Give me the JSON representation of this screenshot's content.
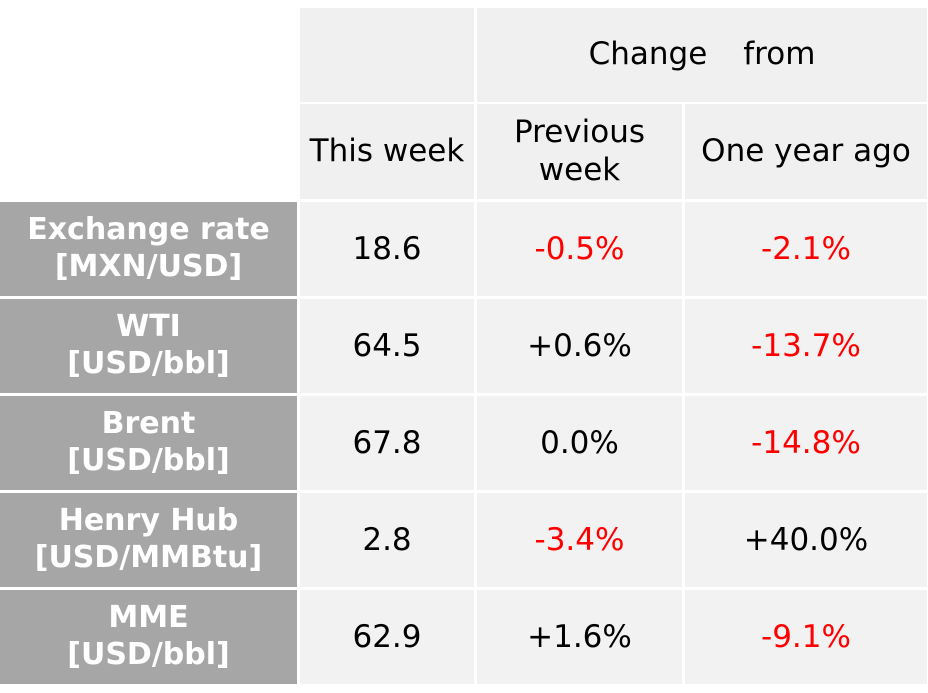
{
  "chart_data": {
    "type": "table",
    "header_group": {
      "word1": "Change",
      "word2": "from"
    },
    "columns": [
      "This week",
      "Previous\nweek",
      "One year ago"
    ],
    "rows": [
      {
        "label": "Exchange rate\n[MXN/USD]",
        "this_week": "18.6",
        "prev_week": "-0.5%",
        "year_ago": "-2.1%"
      },
      {
        "label": "WTI\n[USD/bbl]",
        "this_week": "64.5",
        "prev_week": "+0.6%",
        "year_ago": "-13.7%"
      },
      {
        "label": "Brent\n[USD/bbl]",
        "this_week": "67.8",
        "prev_week": "0.0%",
        "year_ago": "-14.8%"
      },
      {
        "label": "Henry Hub\n[USD/MMBtu]",
        "this_week": "2.8",
        "prev_week": "-3.4%",
        "year_ago": "+40.0%"
      },
      {
        "label": "MME\n[USD/bbl]",
        "this_week": "62.9",
        "prev_week": "+1.6%",
        "year_ago": "-9.1%"
      }
    ]
  },
  "colors": {
    "label_bg": "#a6a6a6",
    "cell_bg": "#f2f2f2",
    "negative": "#ff0000",
    "positive": "#000000"
  }
}
